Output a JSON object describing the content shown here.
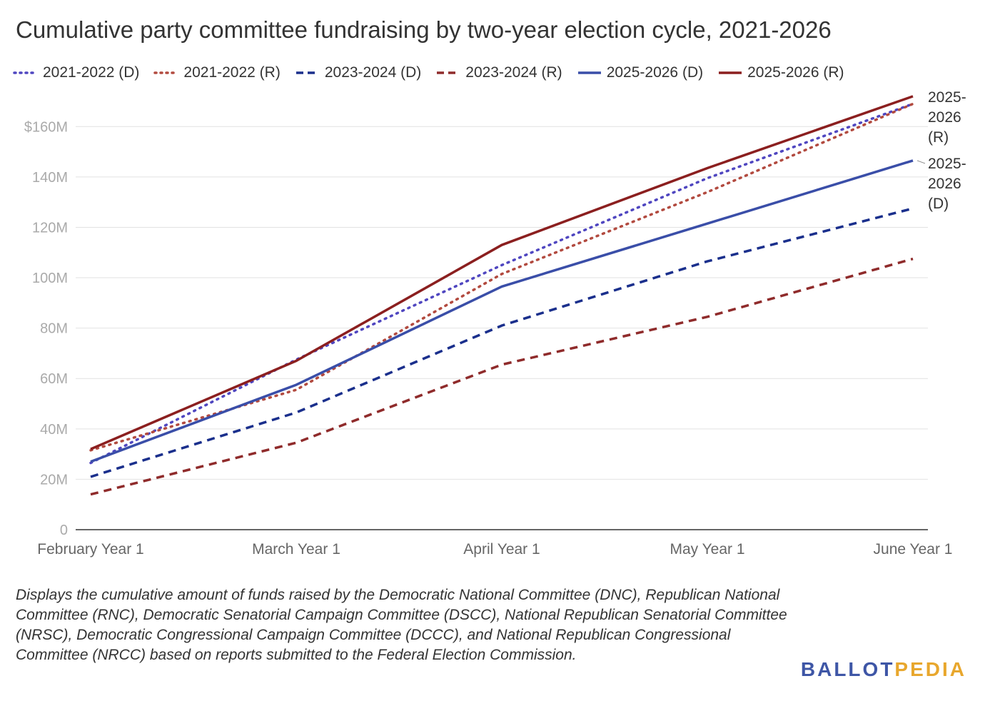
{
  "title": "Cumulative party committee fundraising by two-year election cycle, 2021-2026",
  "note": "Displays the cumulative amount of funds raised by the Democratic National Committee (DNC), Republican National Committee (RNC), Democratic Senatorial Campaign Committee (DSCC), National Republican Senatorial Committee (NRSC), Democratic Congressional Campaign Committee (DCCC), and National Republican Congressional Committee (NRCC) based on reports submitted to the Federal Election Commission.",
  "logo": {
    "part1": "BALLOT",
    "part2": "PEDIA",
    "color1": "#3e56a6",
    "color2": "#e8a72d"
  },
  "chart_data": {
    "type": "line",
    "title": "Cumulative party committee fundraising by two-year election cycle, 2021-2026",
    "xlabel": "",
    "ylabel": "",
    "ylim": [
      0,
      170000000
    ],
    "grid": true,
    "legend_position": "top",
    "y_ticks": [
      {
        "value": 0,
        "label": "0"
      },
      {
        "value": 20000000,
        "label": "20M"
      },
      {
        "value": 40000000,
        "label": "40M"
      },
      {
        "value": 60000000,
        "label": "60M"
      },
      {
        "value": 80000000,
        "label": "80M"
      },
      {
        "value": 100000000,
        "label": "100M"
      },
      {
        "value": 120000000,
        "label": "120M"
      },
      {
        "value": 140000000,
        "label": "140M"
      },
      {
        "value": 160000000,
        "label": "$160M"
      }
    ],
    "categories": [
      "February Year 1",
      "March Year 1",
      "April Year 1",
      "May Year 1",
      "June Year 1"
    ],
    "series": [
      {
        "name": "2021-2022 (D)",
        "color": "#4f46c0",
        "style": "dotted",
        "values": [
          26500000,
          67500000,
          105000000,
          139500000,
          169000000
        ]
      },
      {
        "name": "2021-2022 (R)",
        "color": "#b24a3f",
        "style": "dotted",
        "values": [
          31500000,
          55500000,
          101500000,
          134000000,
          169000000
        ]
      },
      {
        "name": "2023-2024 (D)",
        "color": "#1a2f8c",
        "style": "dashed",
        "values": [
          21000000,
          46500000,
          81000000,
          106500000,
          127500000
        ]
      },
      {
        "name": "2023-2024 (R)",
        "color": "#8f2b2b",
        "style": "dashed",
        "values": [
          14000000,
          34500000,
          65500000,
          84500000,
          107500000
        ]
      },
      {
        "name": "2025-2026 (D)",
        "color": "#3a4ea8",
        "style": "solid",
        "values": [
          27000000,
          57500000,
          96500000,
          121500000,
          146500000
        ]
      },
      {
        "name": "2025-2026 (R)",
        "color": "#8b1f1f",
        "style": "solid",
        "values": [
          32000000,
          67000000,
          113000000,
          143500000,
          172000000
        ]
      }
    ],
    "annotations": [
      {
        "series": "2025-2026 (R)",
        "lines": [
          "2025-",
          "2026",
          "(R)"
        ]
      },
      {
        "series": "2025-2026 (D)",
        "lines": [
          "2025-",
          "2026",
          "(D)"
        ]
      }
    ]
  }
}
